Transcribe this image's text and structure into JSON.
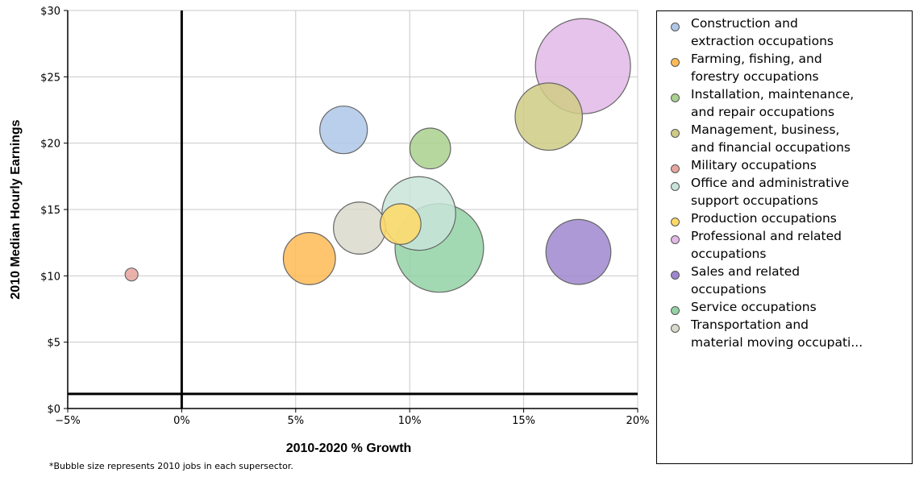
{
  "chart_data": {
    "type": "scatter",
    "title": "",
    "xlabel": "2010-2020 % Growth",
    "ylabel": "2010 Median Hourly Earnings",
    "xlim": [
      -5,
      20
    ],
    "ylim": [
      0,
      30
    ],
    "x_ticks": [
      -5,
      0,
      5,
      10,
      15,
      20
    ],
    "y_ticks": [
      0,
      5,
      10,
      15,
      20,
      25,
      30
    ],
    "x_tick_labels": [
      "−5%",
      "0%",
      "5%",
      "10%",
      "15%",
      "20%"
    ],
    "y_tick_labels": [
      "$0",
      "$5",
      "$10",
      "$15",
      "$20",
      "$25",
      "$30"
    ],
    "grid": true,
    "reference_lines": {
      "x": 0,
      "y": 1.1
    },
    "legend_position": "right",
    "footnote": "*Bubble size represents 2010 jobs in each supersector.",
    "series": [
      {
        "name": "Construction and extraction occupations",
        "legend_label": "Construction and\nextraction occupations",
        "color": "#aec7e8",
        "x": 7.1,
        "y": 21.0,
        "size": 7.5
      },
      {
        "name": "Farming, fishing, and forestry occupations",
        "legend_label": "Farming, fishing, and\nforestry occupations",
        "color": "#ffbb55",
        "x": 5.6,
        "y": 11.3,
        "size": 9.0
      },
      {
        "name": "Installation, maintenance, and repair occupations",
        "legend_label": "Installation, maintenance,\nand repair occupations",
        "color": "#a9d18e",
        "x": 10.9,
        "y": 19.6,
        "size": 5.5
      },
      {
        "name": "Management, business, and financial occupations",
        "legend_label": "Management, business,\nand financial occupations",
        "color": "#cfcb85",
        "x": 16.1,
        "y": 22.0,
        "size": 15.0
      },
      {
        "name": "Military occupations",
        "legend_label": "Military occupations",
        "color": "#e8a49e",
        "x": -2.2,
        "y": 10.1,
        "size": 0.5
      },
      {
        "name": "Office and administrative support occupations",
        "legend_label": "Office and administrative\nsupport occupations",
        "color": "#c8e4d8",
        "x": 10.4,
        "y": 14.7,
        "size": 18.0
      },
      {
        "name": "Production occupations",
        "legend_label": "Production occupations",
        "color": "#ffd966",
        "x": 9.6,
        "y": 13.9,
        "size": 5.5
      },
      {
        "name": "Professional and related occupations",
        "legend_label": "Professional and related\noccupations",
        "color": "#e2b9e6",
        "x": 17.6,
        "y": 25.8,
        "size": 30.0
      },
      {
        "name": "Sales and related occupations",
        "legend_label": "Sales and related\noccupations",
        "color": "#9d87ce",
        "x": 17.4,
        "y": 11.8,
        "size": 14.0
      },
      {
        "name": "Service occupations",
        "legend_label": "Service occupations",
        "color": "#92d2a4",
        "x": 11.3,
        "y": 12.1,
        "size": 26.0
      },
      {
        "name": "Transportation and material moving occupations",
        "legend_label": "Transportation and\nmaterial moving occupati...",
        "color": "#d9d9cc",
        "x": 7.8,
        "y": 13.6,
        "size": 9.0
      }
    ]
  }
}
